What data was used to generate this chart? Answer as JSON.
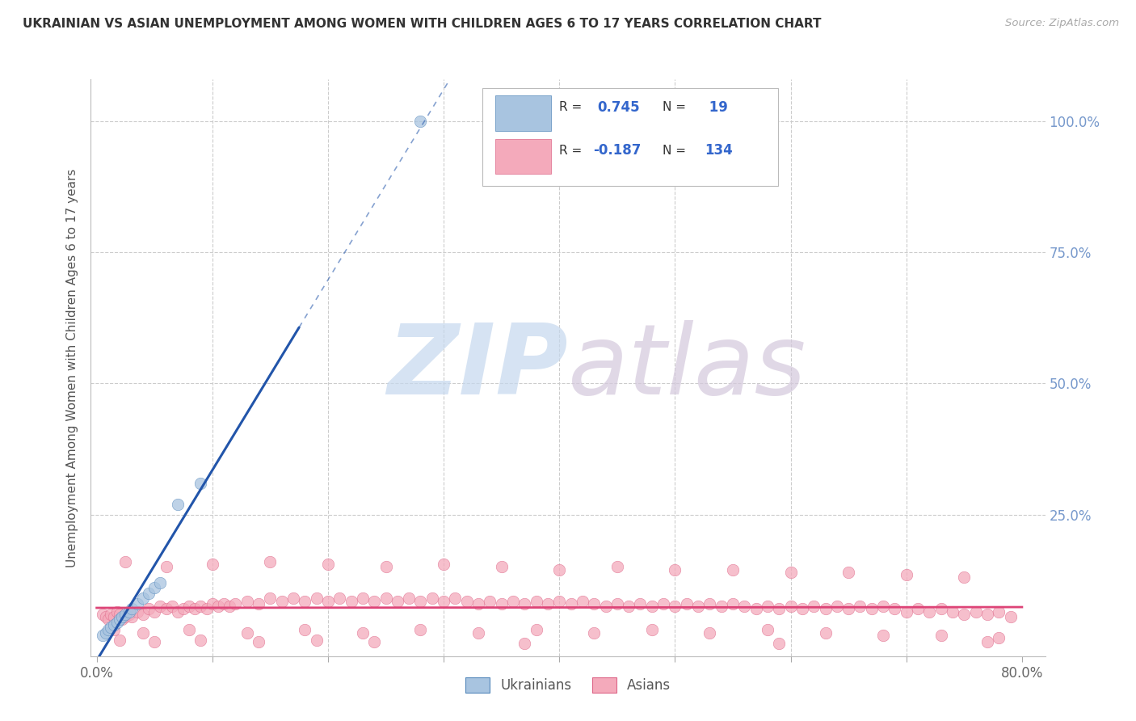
{
  "title": "UKRAINIAN VS ASIAN UNEMPLOYMENT AMONG WOMEN WITH CHILDREN AGES 6 TO 17 YEARS CORRELATION CHART",
  "source": "Source: ZipAtlas.com",
  "ylabel": "Unemployment Among Women with Children Ages 6 to 17 years",
  "xlim": [
    -0.005,
    0.82
  ],
  "ylim": [
    -0.02,
    1.08
  ],
  "xtick_positions": [
    0.0,
    0.1,
    0.2,
    0.3,
    0.4,
    0.5,
    0.6,
    0.7,
    0.8
  ],
  "xticklabels": [
    "0.0%",
    "",
    "",
    "",
    "",
    "",
    "",
    "",
    "80.0%"
  ],
  "ytick_right_positions": [
    0.25,
    0.5,
    0.75,
    1.0
  ],
  "ytick_right_labels": [
    "25.0%",
    "50.0%",
    "75.0%",
    "100.0%"
  ],
  "color_ukr_fill": "#A8C4E0",
  "color_ukr_edge": "#5588BB",
  "color_ukr_line": "#2255AA",
  "color_asian_fill": "#F4AABB",
  "color_asian_edge": "#DD6688",
  "color_asian_line": "#DD4477",
  "color_right_axis_text": "#7799CC",
  "color_grid": "#CCCCCC",
  "color_title": "#333333",
  "watermark_zip": "ZIP",
  "watermark_atlas": "atlas",
  "watermark_color_zip": "#C8D8EC",
  "watermark_color_atlas": "#D8C8D8",
  "ukr_x": [
    0.005,
    0.008,
    0.01,
    0.012,
    0.015,
    0.018,
    0.02,
    0.022,
    0.025,
    0.028,
    0.03,
    0.035,
    0.04,
    0.045,
    0.05,
    0.055,
    0.07,
    0.09,
    0.28
  ],
  "ukr_y": [
    0.02,
    0.025,
    0.03,
    0.035,
    0.04,
    0.045,
    0.05,
    0.055,
    0.06,
    0.065,
    0.07,
    0.08,
    0.09,
    0.1,
    0.11,
    0.12,
    0.27,
    0.31,
    1.0
  ],
  "asian_x": [
    0.005,
    0.008,
    0.01,
    0.012,
    0.015,
    0.018,
    0.02,
    0.022,
    0.025,
    0.028,
    0.03,
    0.035,
    0.04,
    0.045,
    0.05,
    0.055,
    0.06,
    0.065,
    0.07,
    0.075,
    0.08,
    0.085,
    0.09,
    0.095,
    0.1,
    0.105,
    0.11,
    0.115,
    0.12,
    0.13,
    0.14,
    0.15,
    0.16,
    0.17,
    0.18,
    0.19,
    0.2,
    0.21,
    0.22,
    0.23,
    0.24,
    0.25,
    0.26,
    0.27,
    0.28,
    0.29,
    0.3,
    0.31,
    0.32,
    0.33,
    0.34,
    0.35,
    0.36,
    0.37,
    0.38,
    0.39,
    0.4,
    0.41,
    0.42,
    0.43,
    0.44,
    0.45,
    0.46,
    0.47,
    0.48,
    0.49,
    0.5,
    0.51,
    0.52,
    0.53,
    0.54,
    0.55,
    0.56,
    0.57,
    0.58,
    0.59,
    0.6,
    0.61,
    0.62,
    0.63,
    0.64,
    0.65,
    0.66,
    0.67,
    0.68,
    0.69,
    0.7,
    0.71,
    0.72,
    0.73,
    0.74,
    0.75,
    0.76,
    0.77,
    0.78,
    0.79,
    0.025,
    0.06,
    0.1,
    0.15,
    0.2,
    0.25,
    0.3,
    0.35,
    0.4,
    0.45,
    0.5,
    0.55,
    0.6,
    0.65,
    0.7,
    0.75,
    0.015,
    0.04,
    0.08,
    0.13,
    0.18,
    0.23,
    0.28,
    0.33,
    0.38,
    0.43,
    0.48,
    0.53,
    0.58,
    0.63,
    0.68,
    0.73,
    0.78,
    0.02,
    0.05,
    0.09,
    0.14,
    0.19,
    0.24,
    0.37,
    0.59,
    0.77
  ],
  "asian_y": [
    0.06,
    0.055,
    0.05,
    0.06,
    0.055,
    0.065,
    0.06,
    0.05,
    0.055,
    0.06,
    0.055,
    0.065,
    0.06,
    0.07,
    0.065,
    0.075,
    0.07,
    0.075,
    0.065,
    0.07,
    0.075,
    0.07,
    0.075,
    0.07,
    0.08,
    0.075,
    0.08,
    0.075,
    0.08,
    0.085,
    0.08,
    0.09,
    0.085,
    0.09,
    0.085,
    0.09,
    0.085,
    0.09,
    0.085,
    0.09,
    0.085,
    0.09,
    0.085,
    0.09,
    0.085,
    0.09,
    0.085,
    0.09,
    0.085,
    0.08,
    0.085,
    0.08,
    0.085,
    0.08,
    0.085,
    0.08,
    0.085,
    0.08,
    0.085,
    0.08,
    0.075,
    0.08,
    0.075,
    0.08,
    0.075,
    0.08,
    0.075,
    0.08,
    0.075,
    0.08,
    0.075,
    0.08,
    0.075,
    0.07,
    0.075,
    0.07,
    0.075,
    0.07,
    0.075,
    0.07,
    0.075,
    0.07,
    0.075,
    0.07,
    0.075,
    0.07,
    0.065,
    0.07,
    0.065,
    0.07,
    0.065,
    0.06,
    0.065,
    0.06,
    0.065,
    0.055,
    0.16,
    0.15,
    0.155,
    0.16,
    0.155,
    0.15,
    0.155,
    0.15,
    0.145,
    0.15,
    0.145,
    0.145,
    0.14,
    0.14,
    0.135,
    0.13,
    0.03,
    0.025,
    0.03,
    0.025,
    0.03,
    0.025,
    0.03,
    0.025,
    0.03,
    0.025,
    0.03,
    0.025,
    0.03,
    0.025,
    0.02,
    0.02,
    0.015,
    0.01,
    0.008,
    0.01,
    0.008,
    0.01,
    0.008,
    0.005,
    0.005,
    0.008
  ]
}
